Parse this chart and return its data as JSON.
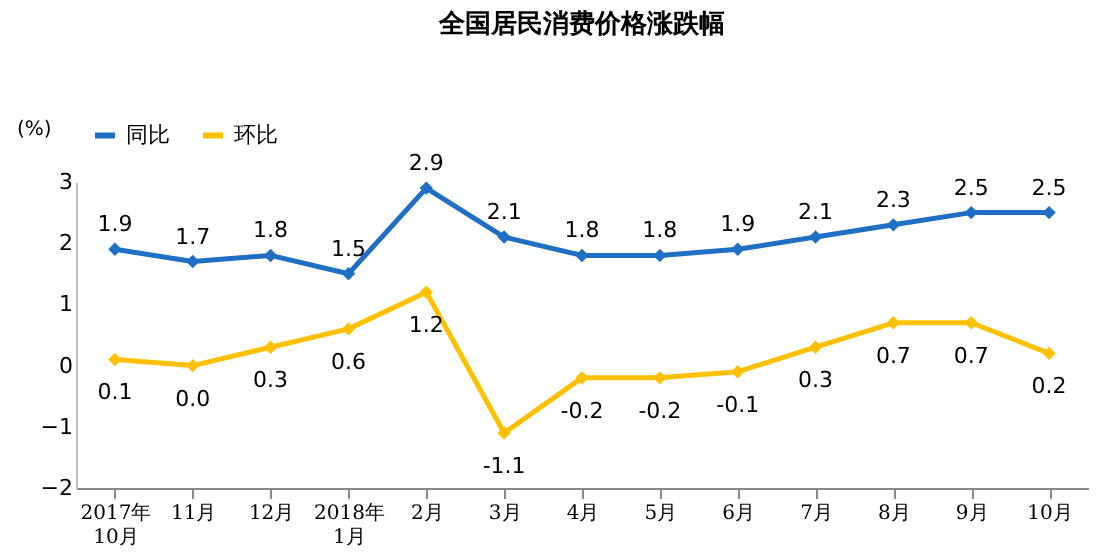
{
  "chart_data": {
    "type": "line",
    "title": "全国居民消费价格涨跌幅",
    "ylabel": "(%)",
    "categories": [
      "2017年\n10月",
      "11月",
      "12月",
      "2018年\n1月",
      "2月",
      "3月",
      "4月",
      "5月",
      "6月",
      "7月",
      "8月",
      "9月",
      "10月"
    ],
    "series": [
      {
        "name": "同比",
        "color": "#1f6fc5",
        "values": [
          1.9,
          1.7,
          1.8,
          1.5,
          2.9,
          2.1,
          1.8,
          1.8,
          1.9,
          2.1,
          2.3,
          2.5,
          2.5
        ]
      },
      {
        "name": "环比",
        "color": "#ffc000",
        "values": [
          0.1,
          0.0,
          0.3,
          0.6,
          1.2,
          -1.1,
          -0.2,
          -0.2,
          -0.1,
          0.3,
          0.7,
          0.7,
          0.2
        ],
        "value_labels": [
          "0.1",
          "0.0",
          "0.3",
          "0.6",
          "1.2",
          "-1.1",
          "-0.2",
          "-0.2",
          "-0.1",
          "0.3",
          "0.7",
          "0.7",
          "0.2"
        ]
      }
    ],
    "ylim": [
      -2,
      3
    ],
    "yticks": [
      -2,
      -1,
      0,
      1,
      2,
      3
    ],
    "grid": false,
    "legend": "top left",
    "marker": "diamond",
    "line_style": "solid",
    "data_labels": true
  }
}
